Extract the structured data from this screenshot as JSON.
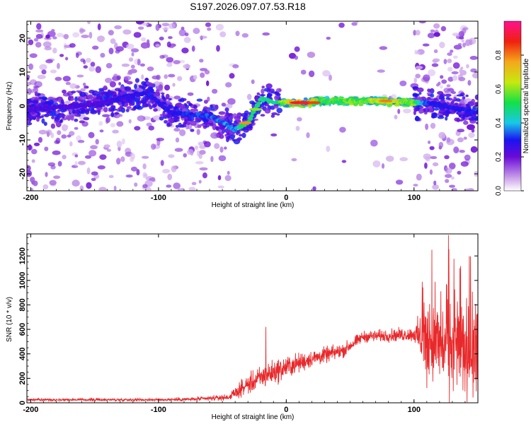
{
  "title": "S197.2026.097.07.53.R18",
  "chart_data": [
    {
      "type": "heatmap",
      "name": "spectrogram",
      "xlabel": "Height of straight line (km)",
      "ylabel": "Frequency (Hz)",
      "xlim": [
        -203,
        150
      ],
      "ylim": [
        -25,
        25
      ],
      "xticks": [
        -200,
        -100,
        0,
        100
      ],
      "yticks": [
        -20,
        -10,
        0,
        10,
        20
      ],
      "colorbar": {
        "label": "Normalized spectral amplitude",
        "range": [
          0,
          1
        ],
        "ticks": [
          "0.0",
          "0.2",
          "0.4",
          "0.6",
          "0.8"
        ]
      },
      "ridge": [
        {
          "x": -200,
          "f": -1,
          "amp": 0.25
        },
        {
          "x": -150,
          "f": 0.5,
          "amp": 0.25
        },
        {
          "x": -110,
          "f": 4,
          "amp": 0.3
        },
        {
          "x": -90,
          "f": -2,
          "amp": 0.3
        },
        {
          "x": -60,
          "f": -3,
          "amp": 0.35
        },
        {
          "x": -40,
          "f": -7,
          "amp": 0.4
        },
        {
          "x": -30,
          "f": -5,
          "amp": 0.55
        },
        {
          "x": -20,
          "f": 2,
          "amp": 0.5
        },
        {
          "x": -8,
          "f": 1,
          "amp": 0.5
        },
        {
          "x": 5,
          "f": 1,
          "amp": 0.8
        },
        {
          "x": 15,
          "f": 1,
          "amp": 0.9
        },
        {
          "x": 28,
          "f": 1.5,
          "amp": 0.55
        },
        {
          "x": 60,
          "f": 1.5,
          "amp": 0.6
        },
        {
          "x": 78,
          "f": 1.5,
          "amp": 0.75
        },
        {
          "x": 98,
          "f": 1,
          "amp": 0.6
        },
        {
          "x": 110,
          "f": 1,
          "amp": 0.35
        },
        {
          "x": 125,
          "f": 0,
          "amp": 0.3
        },
        {
          "x": 148,
          "f": -2,
          "amp": 0.3
        }
      ]
    },
    {
      "type": "line",
      "name": "snr",
      "xlabel": "Height of straight line (km)",
      "ylabel": "SNR (10 * v/v)",
      "xlim": [
        -203,
        150
      ],
      "ylim": [
        0,
        1380
      ],
      "xticks": [
        -200,
        -100,
        0,
        100
      ],
      "yticks": [
        0,
        200,
        400,
        600,
        800,
        1000,
        1200
      ],
      "color": "#e8292b",
      "envelope": [
        {
          "x": -203,
          "mean": 25,
          "spread": 10
        },
        {
          "x": -100,
          "mean": 25,
          "spread": 10
        },
        {
          "x": -70,
          "mean": 30,
          "spread": 15
        },
        {
          "x": -45,
          "mean": 45,
          "spread": 20
        },
        {
          "x": -30,
          "mean": 150,
          "spread": 70
        },
        {
          "x": -15,
          "mean": 230,
          "spread": 90
        },
        {
          "x": 0,
          "mean": 290,
          "spread": 80
        },
        {
          "x": 20,
          "mean": 360,
          "spread": 60
        },
        {
          "x": 45,
          "mean": 430,
          "spread": 50
        },
        {
          "x": 60,
          "mean": 540,
          "spread": 40
        },
        {
          "x": 100,
          "mean": 560,
          "spread": 50
        },
        {
          "x": 110,
          "mean": 500,
          "spread": 300
        },
        {
          "x": 150,
          "mean": 430,
          "spread": 350
        }
      ],
      "peaks": [
        {
          "x": -16,
          "y": 620
        },
        {
          "x": 114,
          "y": 1250
        },
        {
          "x": 127,
          "y": 1370
        },
        {
          "x": 136,
          "y": 1100
        }
      ]
    }
  ]
}
